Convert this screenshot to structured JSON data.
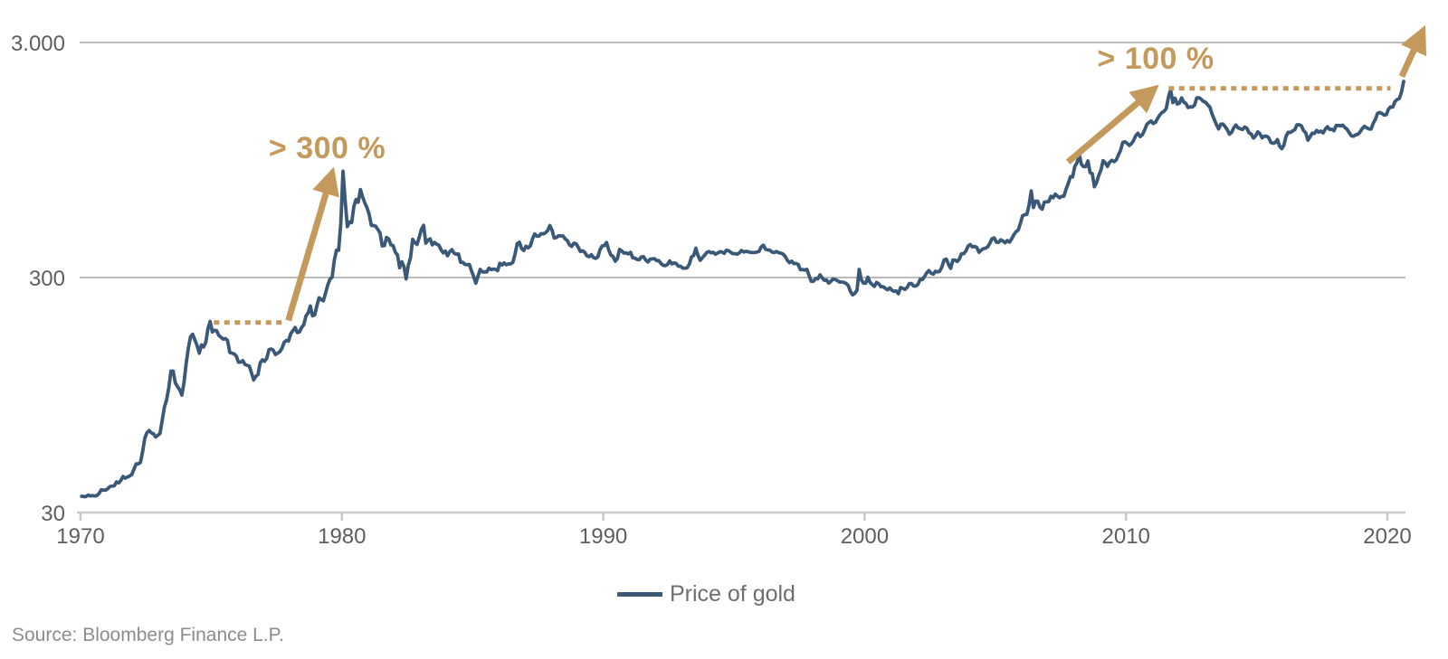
{
  "chart_data": {
    "type": "line",
    "title": "",
    "y_scale": "log",
    "x_range": [
      1970,
      2020.75
    ],
    "y_range": [
      30,
      3000
    ],
    "grid": "horizontal-only",
    "legend_position": "bottom-center",
    "accent_color": "#C49A5C",
    "line_color": "#3A5877",
    "x_ticks": [
      {
        "label": "1970",
        "year": 1970
      },
      {
        "label": "1980",
        "year": 1980
      },
      {
        "label": "1990",
        "year": 1990
      },
      {
        "label": "2000",
        "year": 2000
      },
      {
        "label": "2010",
        "year": 2010
      },
      {
        "label": "2020",
        "year": 2020
      }
    ],
    "y_ticks": [
      {
        "label": "30",
        "value": 30,
        "gridline": false
      },
      {
        "label": "300",
        "value": 300,
        "gridline": true
      },
      {
        "label": "3.000",
        "value": 3000,
        "gridline": true
      }
    ],
    "series": [
      {
        "name": "Price of gold",
        "start_year": 1970,
        "points_per_year": 12,
        "unit": "USD per ounce (approx. monthly)",
        "prices": [
          35.2,
          35.1,
          35.1,
          35.6,
          35.3,
          35.4,
          35.3,
          35.4,
          36.2,
          37.5,
          37.4,
          37.4,
          37.9,
          38.7,
          38.9,
          39.0,
          40.5,
          40.1,
          41.1,
          42.7,
          42.0,
          42.5,
          42.9,
          43.5,
          45.8,
          48.3,
          48.3,
          49.0,
          54.6,
          62.1,
          65.7,
          67.0,
          65.5,
          64.9,
          62.9,
          63.9,
          65.1,
          74.2,
          84.4,
          90.5,
          102,
          120,
          120,
          107,
          103,
          100,
          94.8,
          107,
          129,
          150,
          168,
          172,
          163,
          154,
          143,
          155,
          152,
          159,
          182,
          195,
          176,
          179,
          178,
          170,
          167,
          164,
          165,
          162,
          144,
          143,
          142,
          139,
          131,
          131,
          133,
          128,
          127,
          126,
          118,
          110,
          114,
          116,
          130,
          134,
          132,
          136,
          148,
          149,
          147,
          141,
          143,
          145,
          150,
          159,
          162,
          161,
          173,
          178,
          184,
          175,
          176,
          184,
          189,
          206,
          212,
          227,
          206,
          208,
          227,
          246,
          242,
          239,
          258,
          279,
          295,
          301,
          355,
          392,
          392,
          512,
          850,
          637,
          494,
          517,
          514,
          601,
          644,
          627,
          710,
          661,
          623,
          595,
          557,
          500,
          499,
          496,
          480,
          465,
          409,
          410,
          444,
          438,
          413,
          410,
          384,
          374,
          330,
          350,
          334,
          296,
          339,
          364,
          436,
          422,
          415,
          444,
          481,
          500,
          420,
          433,
          438,
          413,
          423,
          416,
          412,
          394,
          382,
          389,
          371,
          386,
          394,
          381,
          377,
          378,
          348,
          348,
          341,
          340,
          341,
          320,
          303,
          284,
          304,
          325,
          317,
          317,
          317,
          329,
          324,
          326,
          325,
          321,
          345,
          339,
          346,
          340,
          343,
          343,
          348,
          377,
          418,
          424,
          399,
          391,
          408,
          401,
          409,
          438,
          460,
          450,
          451,
          461,
          460,
          465,
          476,
          499,
          477,
          442,
          444,
          452,
          451,
          451,
          438,
          431,
          413,
          407,
          420,
          418,
          404,
          387,
          390,
          384,
          371,
          368,
          375,
          365,
          362,
          367,
          394,
          409,
          410,
          423,
          393,
          374,
          369,
          352,
          362,
          395,
          389,
          381,
          382,
          378,
          384,
          364,
          363,
          358,
          357,
          367,
          368,
          356,
          349,
          359,
          360,
          361,
          354,
          354,
          344,
          338,
          337,
          341,
          353,
          343,
          346,
          344,
          335,
          335,
          329,
          329,
          330,
          342,
          367,
          372,
          400,
          372,
          355,
          364,
          373,
          383,
          387,
          382,
          384,
          377,
          381,
          386,
          385,
          380,
          392,
          390,
          384,
          379,
          379,
          377,
          382,
          391,
          385,
          388,
          386,
          384,
          383,
          383,
          385,
          387,
          405,
          412,
          396,
          393,
          392,
          385,
          383,
          387,
          383,
          381,
          378,
          369,
          355,
          347,
          352,
          344,
          344,
          341,
          324,
          324,
          323,
          325,
          306,
          289,
          289,
          297,
          296,
          308,
          299,
          292,
          293,
          284,
          289,
          296,
          294,
          291,
          287,
          287,
          286,
          283,
          277,
          261,
          253,
          257,
          265,
          325,
          293,
          284,
          284,
          301,
          286,
          280,
          275,
          286,
          282,
          274,
          274,
          270,
          266,
          271,
          265,
          262,
          263,
          256,
          272,
          270,
          267,
          272,
          283,
          283,
          276,
          276,
          281,
          295,
          294,
          303,
          314,
          321,
          313,
          310,
          319,
          317,
          319,
          333,
          357,
          359,
          341,
          328,
          356,
          356,
          351,
          360,
          379,
          379,
          389,
          408,
          414,
          405,
          407,
          403,
          384,
          392,
          398,
          400,
          405,
          420,
          439,
          442,
          424,
          423,
          434,
          429,
          422,
          431,
          424,
          438,
          456,
          470,
          477,
          510,
          550,
          555,
          557,
          611,
          700,
          596,
          634,
          633,
          598,
          586,
          628,
          630,
          631,
          665,
          655,
          679,
          667,
          655,
          665,
          665,
          713,
          755,
          806,
          803,
          890,
          922,
          1003,
          910,
          889,
          889,
          940,
          839,
          830,
          730,
          761,
          816,
          859,
          943,
          924,
          890,
          929,
          946,
          934,
          949,
          997,
          1043,
          1127,
          1135,
          1118,
          1095,
          1113,
          1149,
          1205,
          1233,
          1193,
          1216,
          1271,
          1342,
          1370,
          1391,
          1356,
          1373,
          1424,
          1474,
          1510,
          1529,
          1573,
          1756,
          1895,
          1665,
          1739,
          1641,
          1656,
          1743,
          1674,
          1650,
          1586,
          1597,
          1594,
          1626,
          1745,
          1747,
          1722,
          1685,
          1672,
          1628,
          1593,
          1488,
          1414,
          1343,
          1287,
          1347,
          1349,
          1316,
          1276,
          1222,
          1244,
          1301,
          1336,
          1299,
          1289,
          1279,
          1311,
          1295,
          1237,
          1223,
          1176,
          1201,
          1251,
          1227,
          1179,
          1198,
          1199,
          1182,
          1128,
          1118,
          1125,
          1159,
          1086,
          1060,
          1098,
          1200,
          1245,
          1242,
          1261,
          1276,
          1340,
          1340,
          1327,
          1267,
          1238,
          1152,
          1192,
          1234,
          1231,
          1267,
          1246,
          1260,
          1237,
          1283,
          1314,
          1280,
          1282,
          1264,
          1331,
          1331,
          1325,
          1335,
          1304,
          1282,
          1238,
          1202,
          1198,
          1215,
          1221,
          1250,
          1292,
          1320,
          1301,
          1286,
          1284,
          1359,
          1413,
          1500,
          1511,
          1495,
          1472,
          1479,
          1561,
          1597,
          1592,
          1683,
          1716,
          1732,
          1843,
          2050
        ]
      }
    ],
    "annotations": [
      {
        "label": "> 300 %",
        "label_anchor": {
          "year": 1977.2,
          "value": 1000
        },
        "dotted": {
          "from_year": 1975.1,
          "to_year": 1977.85,
          "value": 193
        },
        "arrow": {
          "from": {
            "year": 1977.95,
            "value": 197
          },
          "to": {
            "year": 1979.6,
            "value": 820
          }
        }
      },
      {
        "label": "> 100 %",
        "label_anchor": {
          "year": 2008.9,
          "value": 2400
        },
        "dotted": {
          "from_year": 2011.63,
          "to_year": 2020.12,
          "value": 1915
        },
        "arrow": {
          "from": {
            "year": 2007.78,
            "value": 930
          },
          "to": {
            "year": 2011.02,
            "value": 1880
          }
        }
      },
      {
        "label": "",
        "arrow": {
          "from": {
            "year": 2020.55,
            "value": 2150
          },
          "to": {
            "year": 2021.32,
            "value": 3300
          }
        }
      }
    ],
    "legend": {
      "label": "Price of gold"
    },
    "source": "Source: Bloomberg Finance L.P."
  }
}
